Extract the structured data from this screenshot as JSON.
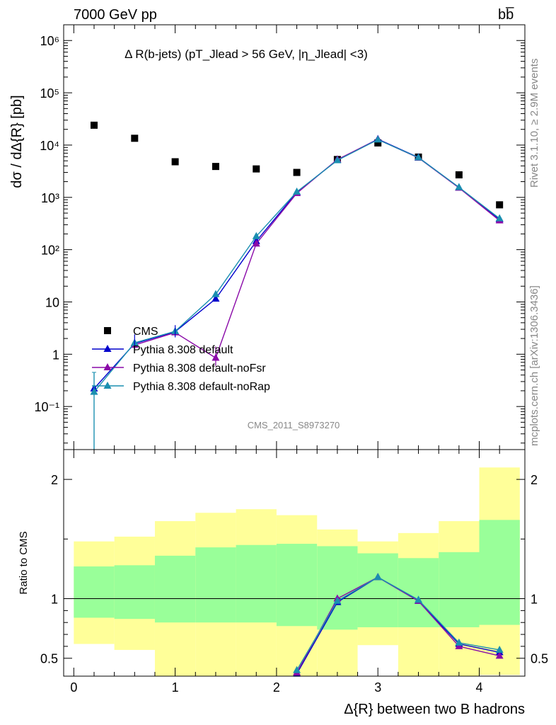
{
  "header": {
    "left": "7000 GeV pp",
    "right": "bb̅"
  },
  "side_labels": {
    "rivet": "Rivet 3.1.10, ≥ 2.9M events",
    "mcplots": "mcplots.cern.ch [arXiv:1306.3436]"
  },
  "watermark": "CMS_2011_S8973270",
  "colors": {
    "data": "#000000",
    "default": "#0000cc",
    "noFsr": "#8a0aa8",
    "noRap": "#1a8fb0",
    "band_inner": "#99ff99",
    "band_outer": "#ffff99"
  },
  "chart_data": [
    {
      "type": "scatter",
      "title": "Δ R(b-jets) (pT_Jlead > 56 GeV, |η_Jlead| <3)",
      "ylabel": "dσ / dΔ{R} [pb]",
      "yscale": "log",
      "ylim": [
        0.015,
        2000000
      ],
      "xlim": [
        -0.1,
        4.45
      ],
      "ytick_labels": [
        "10⁻¹",
        "1",
        "10",
        "10²",
        "10³",
        "10⁴",
        "10⁵",
        "10⁶"
      ],
      "ytick_values": [
        0.1,
        1,
        10,
        100,
        1000,
        10000,
        100000,
        1000000
      ],
      "legend_position": "lower-left",
      "legend": [
        "CMS",
        "Pythia 8.308 default",
        "Pythia 8.308 default-noFsr",
        "Pythia 8.308 default-noRap"
      ],
      "x": [
        0.2,
        0.6,
        1.0,
        1.4,
        1.8,
        2.2,
        2.6,
        3.0,
        3.4,
        3.8,
        4.2
      ],
      "series": [
        {
          "name": "CMS",
          "values": [
            24000,
            13500,
            4800,
            3900,
            3500,
            3000,
            5300,
            11000,
            5900,
            2700,
            720
          ]
        },
        {
          "name": "Pythia 8.308 default",
          "values": [
            0.22,
            1.6,
            2.7,
            11.5,
            145,
            1250,
            5200,
            13000,
            5800,
            1550,
            380
          ]
        },
        {
          "name": "Pythia 8.308 default-noFsr",
          "values": [
            null,
            1.5,
            2.6,
            0.85,
            130,
            1200,
            5300,
            12800,
            5700,
            1520,
            360
          ]
        },
        {
          "name": "Pythia 8.308 default-noRap",
          "values": [
            0.19,
            1.65,
            2.75,
            14,
            180,
            1280,
            5100,
            12700,
            5750,
            1560,
            395
          ]
        }
      ]
    },
    {
      "type": "line",
      "ylabel": "Ratio to CMS",
      "xlabel": "Δ{R} between two B hadrons",
      "ylim": [
        0.35,
        2.25
      ],
      "xlim": [
        -0.1,
        4.45
      ],
      "ytick_labels": [
        "0.5",
        "1",
        "2"
      ],
      "ytick_values": [
        0.5,
        1,
        2
      ],
      "xtick_labels": [
        "0",
        "1",
        "2",
        "3",
        "4"
      ],
      "xtick_values": [
        0,
        1,
        2,
        3,
        4
      ],
      "bins": [
        0.0,
        0.4,
        0.8,
        1.2,
        1.6,
        2.0,
        2.4,
        2.8,
        3.2,
        3.6,
        4.0,
        4.4
      ],
      "band_inner_lo": [
        0.84,
        0.83,
        0.8,
        0.8,
        0.8,
        0.77,
        0.74,
        0.76,
        0.76,
        0.76,
        0.78
      ],
      "band_inner_hi": [
        1.27,
        1.28,
        1.36,
        1.43,
        1.45,
        1.46,
        1.44,
        1.38,
        1.34,
        1.39,
        1.66
      ],
      "band_outer_lo": [
        0.62,
        0.57,
        0.3,
        0.3,
        0.3,
        0.3,
        0.3,
        0.3,
        0.3,
        0.3,
        0.3
      ],
      "band_outer_hi": [
        1.48,
        1.52,
        1.65,
        1.72,
        1.75,
        1.7,
        1.58,
        1.48,
        1.55,
        1.65,
        2.1
      ],
      "x": [
        2.2,
        2.6,
        3.0,
        3.4,
        3.8,
        4.2
      ],
      "series": [
        {
          "name": "Pythia 8.308 default",
          "values": [
            0.37,
            0.97,
            1.18,
            0.98,
            0.62,
            0.55
          ]
        },
        {
          "name": "Pythia 8.308 default-noFsr",
          "values": [
            0.38,
            1.0,
            1.18,
            0.98,
            0.6,
            0.52
          ]
        },
        {
          "name": "Pythia 8.308 default-noRap",
          "values": [
            0.4,
            0.98,
            1.18,
            0.99,
            0.63,
            0.57
          ]
        }
      ]
    }
  ]
}
